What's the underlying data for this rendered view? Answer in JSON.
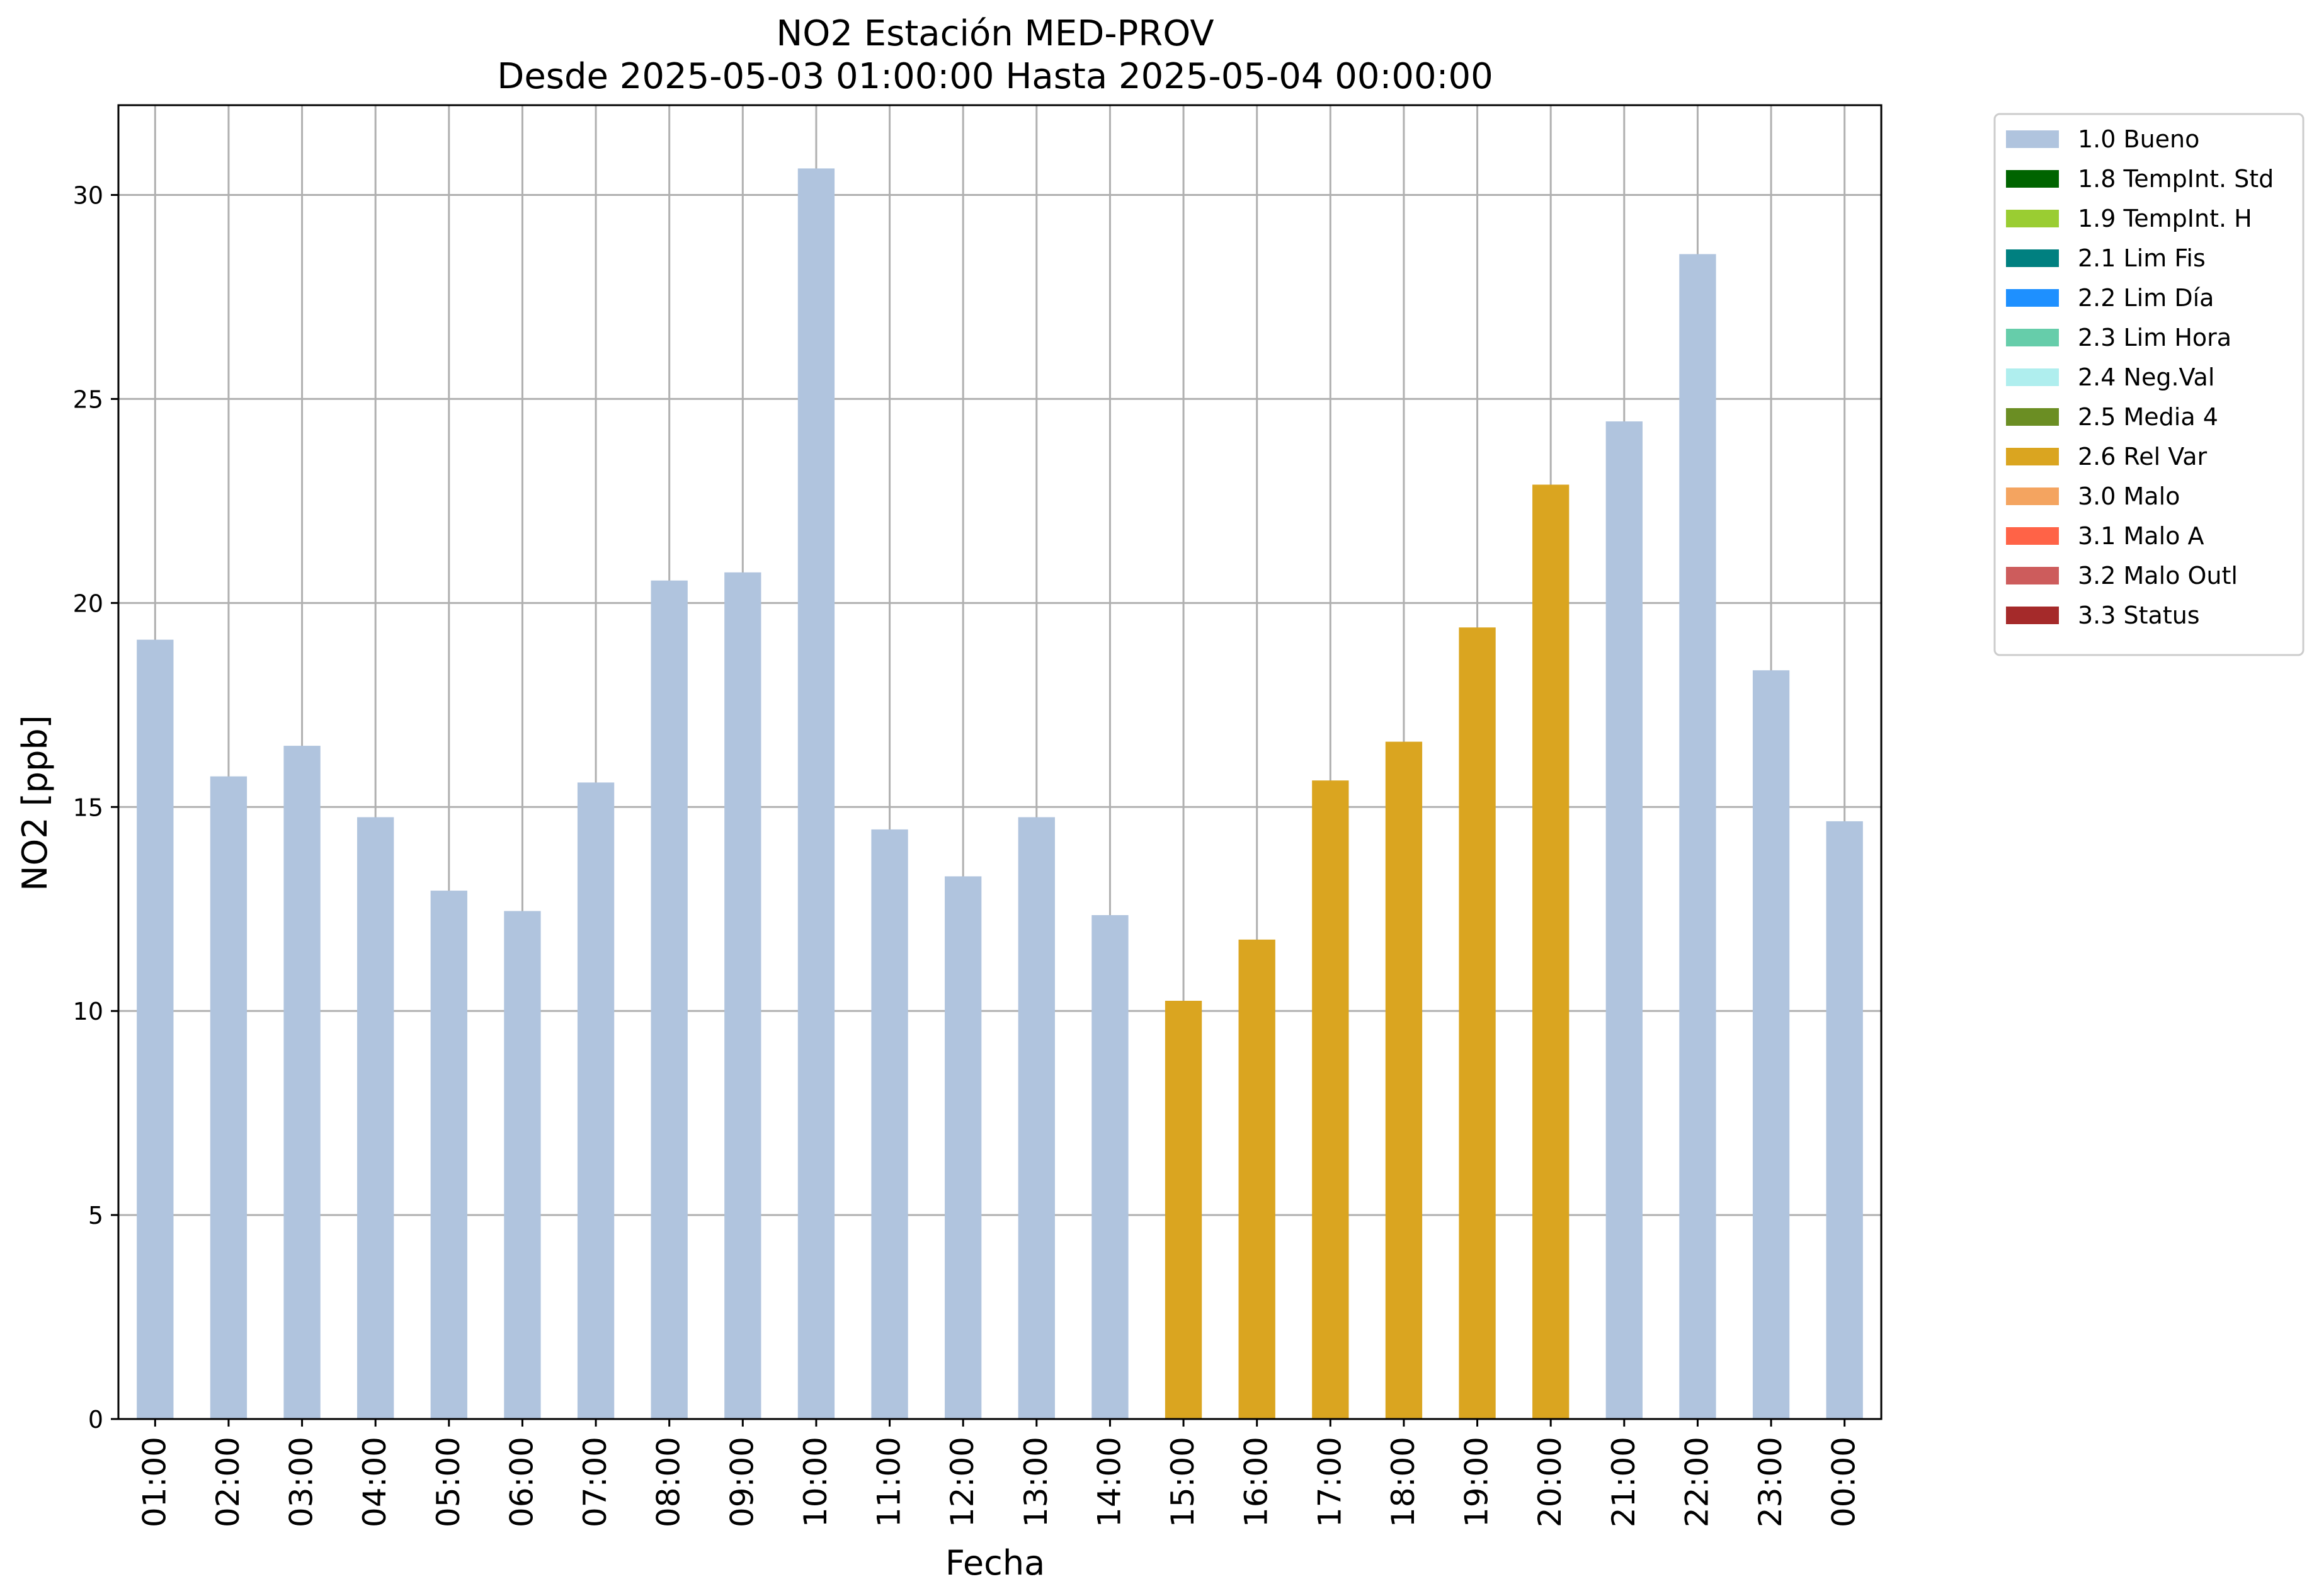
{
  "chart_data": {
    "type": "bar",
    "title": [
      "NO2 Estación MED-PROV",
      "Desde 2025-05-03 01:00:00 Hasta 2025-05-04 00:00:00"
    ],
    "xlabel": "Fecha",
    "ylabel": "NO2 [ppb]",
    "ylim": [
      0,
      32.2
    ],
    "yticks": [
      0,
      5,
      10,
      15,
      20,
      25,
      30
    ],
    "grid": true,
    "legend_placement": "outside-top-right",
    "categories": [
      "01:00",
      "02:00",
      "03:00",
      "04:00",
      "05:00",
      "06:00",
      "07:00",
      "08:00",
      "09:00",
      "10:00",
      "11:00",
      "12:00",
      "13:00",
      "14:00",
      "15:00",
      "16:00",
      "17:00",
      "18:00",
      "19:00",
      "20:00",
      "21:00",
      "22:00",
      "23:00",
      "00:00"
    ],
    "values": [
      19.1,
      15.75,
      16.5,
      14.75,
      12.95,
      12.45,
      15.6,
      20.55,
      20.75,
      30.65,
      14.45,
      13.3,
      14.75,
      12.35,
      10.25,
      11.75,
      15.65,
      16.6,
      19.4,
      22.9,
      24.45,
      28.55,
      18.35,
      14.65
    ],
    "flags": [
      "1.0 Bueno",
      "1.0 Bueno",
      "1.0 Bueno",
      "1.0 Bueno",
      "1.0 Bueno",
      "1.0 Bueno",
      "1.0 Bueno",
      "1.0 Bueno",
      "1.0 Bueno",
      "1.0 Bueno",
      "1.0 Bueno",
      "1.0 Bueno",
      "1.0 Bueno",
      "1.0 Bueno",
      "2.6 Rel Var",
      "2.6 Rel Var",
      "2.6 Rel Var",
      "2.6 Rel Var",
      "2.6 Rel Var",
      "2.6 Rel Var",
      "1.0 Bueno",
      "1.0 Bueno",
      "1.0 Bueno",
      "1.0 Bueno"
    ],
    "legend": [
      {
        "name": "1.0 Bueno",
        "color": "#b0c4de"
      },
      {
        "name": "1.8 TempInt. Std",
        "color": "#006400"
      },
      {
        "name": "1.9 TempInt. H",
        "color": "#9acd32"
      },
      {
        "name": "2.1 Lim Fis",
        "color": "#008080"
      },
      {
        "name": "2.2 Lim Día",
        "color": "#1e90ff"
      },
      {
        "name": "2.3 Lim Hora",
        "color": "#66cdaa"
      },
      {
        "name": "2.4 Neg.Val",
        "color": "#afeeee"
      },
      {
        "name": "2.5 Media 4",
        "color": "#6b8e23"
      },
      {
        "name": "2.6 Rel Var",
        "color": "#daa520"
      },
      {
        "name": "3.0 Malo",
        "color": "#f4a460"
      },
      {
        "name": "3.1 Malo A",
        "color": "#ff6347"
      },
      {
        "name": "3.2 Malo Outl",
        "color": "#cd5c5c"
      },
      {
        "name": "3.3 Status",
        "color": "#a52a2a"
      }
    ]
  }
}
